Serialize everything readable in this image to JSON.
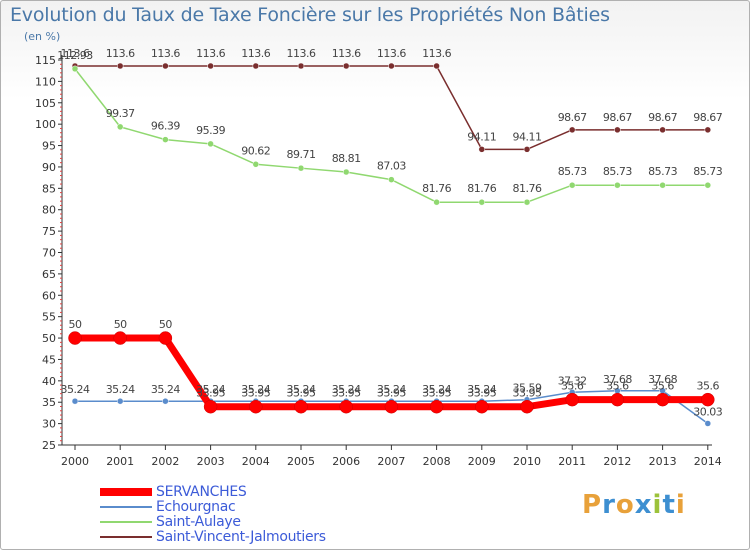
{
  "title": "Evolution du Taux de Taxe Foncière sur les Propriétés Non Bâties",
  "unit": "(en %)",
  "colors": {
    "axis_text": "#333333",
    "label_text": "#444444",
    "grid": "#dddddd",
    "title": "#4a78a8",
    "legend_text": "#3c5bd8"
  },
  "logo": {
    "letters": [
      "P",
      "r",
      "o",
      "x",
      "i",
      "t",
      "i"
    ],
    "colors": [
      "#e8a13a",
      "#3d8fd1",
      "#e8a13a",
      "#3d8fd1",
      "#9cc23a",
      "#3d8fd1",
      "#e8a13a"
    ]
  },
  "chart_data": {
    "type": "line",
    "title": "Evolution du Taux de Taxe Foncière sur les Propriétés Non Bâties",
    "ylabel": "(en %)",
    "xlabel": "",
    "x": [
      "2000",
      "2001",
      "2002",
      "2003",
      "2004",
      "2005",
      "2006",
      "2007",
      "2008",
      "2009",
      "2010",
      "2011",
      "2012",
      "2013",
      "2014"
    ],
    "ylim": [
      25,
      115
    ],
    "yticks": [
      "25",
      "30",
      "35",
      "40",
      "45",
      "50",
      "55",
      "60",
      "65",
      "70",
      "75",
      "80",
      "85",
      "90",
      "95",
      "100",
      "105",
      "110",
      "115"
    ],
    "grid": false,
    "legend_position": "bottom-left",
    "series": [
      {
        "name": "SERVANCHES",
        "color": "#ff0000",
        "values": [
          50,
          50,
          50,
          33.95,
          33.95,
          33.95,
          33.95,
          33.95,
          33.95,
          33.95,
          33.95,
          35.6,
          35.6,
          35.6,
          35.6
        ],
        "labels": [
          "50",
          "50",
          "50",
          "33.95",
          "33.95",
          "33.95",
          "33.95",
          "33.95",
          "33.95",
          "33.95",
          "33.95",
          "35.6",
          "35.6",
          "35.6",
          "35.6"
        ]
      },
      {
        "name": "Echourgnac",
        "color": "#5a8ccc",
        "values": [
          35.24,
          35.24,
          35.24,
          35.24,
          35.24,
          35.24,
          35.24,
          35.24,
          35.24,
          35.24,
          35.59,
          37.32,
          37.68,
          37.68,
          30.03
        ],
        "labels": [
          "35.24",
          "35.24",
          "35.24",
          "35.24",
          "35.24",
          "35.24",
          "35.24",
          "35.24",
          "35.24",
          "35.24",
          "35.59",
          "37.32",
          "37.68",
          "37.68",
          "30.03"
        ]
      },
      {
        "name": "Saint-Aulaye",
        "color": "#90d870",
        "values": [
          112.93,
          99.37,
          96.39,
          95.39,
          90.62,
          89.71,
          88.81,
          87.03,
          81.76,
          81.76,
          81.76,
          85.73,
          85.73,
          85.73,
          85.73
        ],
        "labels": [
          "112.93",
          "99.37",
          "96.39",
          "95.39",
          "90.62",
          "89.71",
          "88.81",
          "87.03",
          "81.76",
          "81.76",
          "81.76",
          "85.73",
          "85.73",
          "85.73",
          "85.73"
        ]
      },
      {
        "name": "Saint-Vincent-Jalmoutiers",
        "color": "#7a2e2e",
        "values": [
          113.6,
          113.6,
          113.6,
          113.6,
          113.6,
          113.6,
          113.6,
          113.6,
          113.6,
          94.11,
          94.11,
          98.67,
          98.67,
          98.67,
          98.67
        ],
        "labels": [
          "113.6",
          "113.6",
          "113.6",
          "113.6",
          "113.6",
          "113.6",
          "113.6",
          "113.6",
          "113.6",
          "94.11",
          "94.11",
          "98.67",
          "98.67",
          "98.67",
          "98.67"
        ]
      }
    ]
  }
}
